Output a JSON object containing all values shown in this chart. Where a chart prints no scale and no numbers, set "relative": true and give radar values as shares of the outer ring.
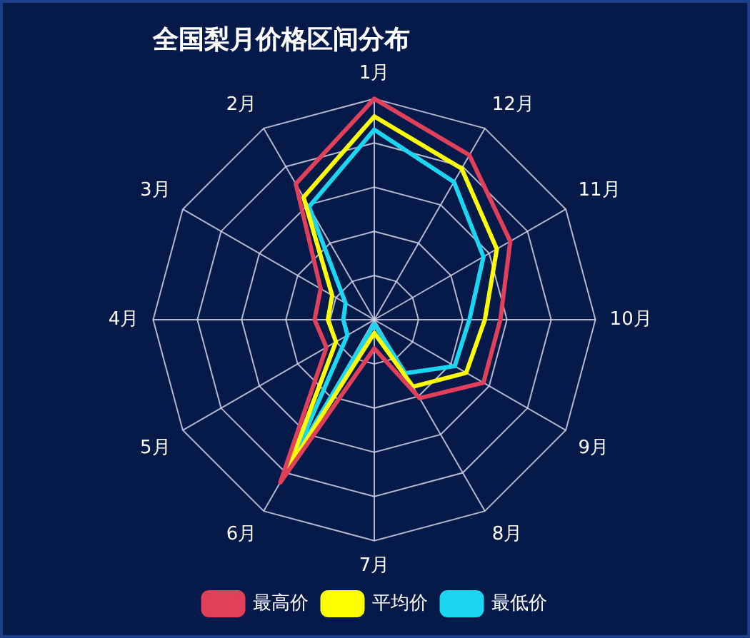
{
  "chart_data": {
    "type": "radar",
    "title": "全国梨月价格区间分布",
    "relative": true,
    "categories": [
      "1月",
      "12月",
      "11月",
      "10月",
      "9月",
      "8月",
      "7月",
      "6月",
      "5月",
      "4月",
      "3月",
      "2月"
    ],
    "series": [
      {
        "name": "最高价",
        "color": "#e0405a",
        "values": [
          1.0,
          0.86,
          0.71,
          0.57,
          0.57,
          0.41,
          0.13,
          0.85,
          0.25,
          0.27,
          0.28,
          0.71
        ]
      },
      {
        "name": "平均价",
        "color": "#ffff00",
        "values": [
          0.92,
          0.79,
          0.64,
          0.5,
          0.48,
          0.35,
          0.06,
          0.78,
          0.2,
          0.21,
          0.22,
          0.64
        ]
      },
      {
        "name": "最低价",
        "color": "#1ad6f0",
        "values": [
          0.86,
          0.72,
          0.57,
          0.43,
          0.42,
          0.28,
          0.02,
          0.74,
          0.14,
          0.14,
          0.15,
          0.59
        ]
      }
    ],
    "grid": true,
    "legend": "bottom",
    "marker": "none",
    "line_style": "solid"
  }
}
